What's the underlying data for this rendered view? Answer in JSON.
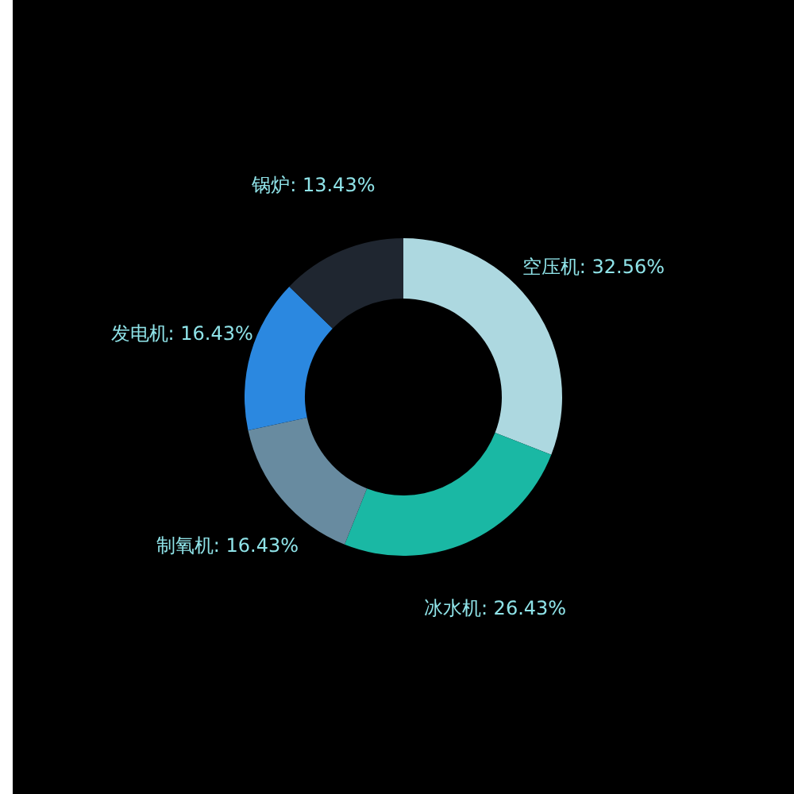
{
  "chart_data": {
    "type": "donut",
    "categories": [
      "空压机",
      "冰水机",
      "制氧机",
      "发电机",
      "锅炉"
    ],
    "values": [
      32.56,
      26.43,
      16.43,
      16.43,
      13.43
    ],
    "value_labels": [
      "32.56%",
      "26.43%",
      "16.43%",
      "16.43%",
      "13.43%"
    ],
    "colors": [
      "#add8e0",
      "#1ab8a4",
      "#688ba0",
      "#2b88e0",
      "#1f2630"
    ]
  }
}
